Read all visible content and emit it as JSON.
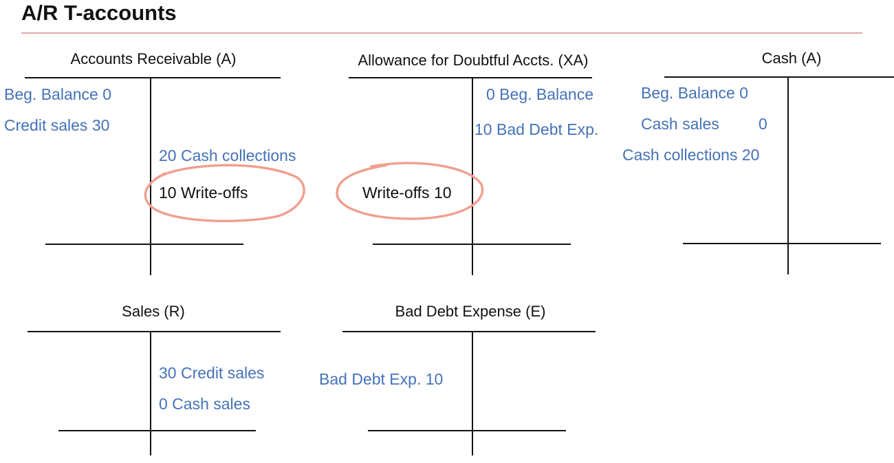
{
  "slide_title": "A/R T-accounts",
  "colors": {
    "entry_blue": "#4472b8",
    "entry_black": "#111111",
    "line": "#111111",
    "title_rule": "#e2a7ac",
    "highlight_circle": "#f0a090"
  },
  "accounts": {
    "ar": {
      "title": "Accounts Receivable (A)",
      "debits": [
        "Beg. Balance  0",
        "Credit sales  30"
      ],
      "credits": [
        "20  Cash collections",
        "10  Write-offs"
      ]
    },
    "allowance": {
      "title": "Allowance for Doubtful Accts. (XA)",
      "debits": [
        "Write-offs 10"
      ],
      "credits": [
        "0  Beg. Balance",
        "10  Bad Debt Exp."
      ]
    },
    "cash": {
      "title": "Cash (A)",
      "debits": [
        "Beg. Balance  0",
        "Cash sales",
        "0",
        "Cash collections 20"
      ],
      "credits": []
    },
    "sales": {
      "title": "Sales (R)",
      "debits": [],
      "credits": [
        "30  Credit sales",
        "0  Cash sales"
      ]
    },
    "bad_debt": {
      "title": "Bad Debt Expense (E)",
      "debits": [
        "Bad Debt Exp. 10"
      ],
      "credits": []
    }
  },
  "highlights": [
    "ar-write-offs-credit",
    "allowance-write-offs-debit"
  ]
}
